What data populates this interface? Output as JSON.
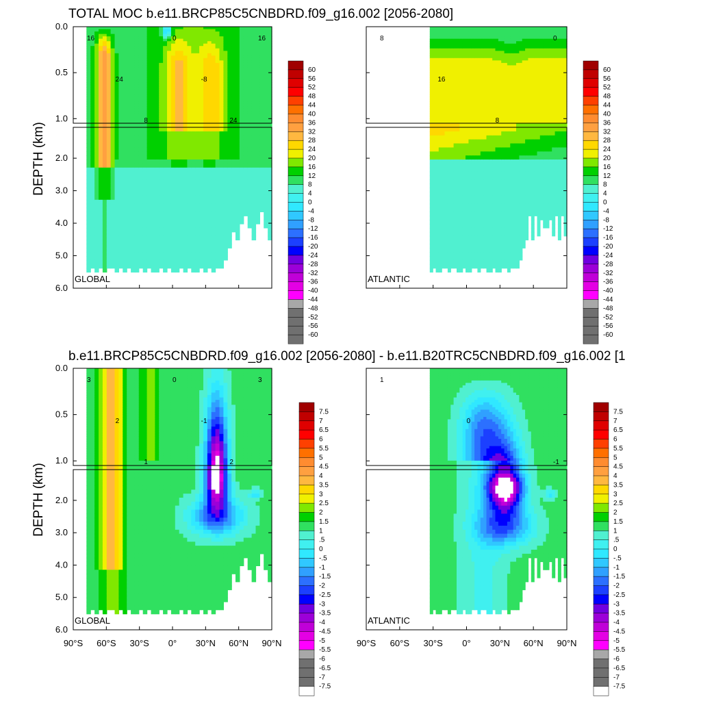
{
  "title_top": "TOTAL MOC b.e11.BRCP85C5CNBDRD.f09_g16.002 [2056-2080]",
  "title_bottom": "b.e11.BRCP85C5CNBDRD.f09_g16.002 [2056-2080] - b.e11.B20TRC5CNBDRD.f09_g16.002 [1",
  "ylabel": "DEPTH (km)",
  "colors": {
    "palette": [
      "#707070",
      "#a8a8a8",
      "#ff00ff",
      "#e400e4",
      "#c000d8",
      "#9c00d8",
      "#7000e0",
      "#0000ff",
      "#1c40ff",
      "#2c70ff",
      "#30a0ff",
      "#30c8ff",
      "#30e8ff",
      "#40f0f0",
      "#50f0d0",
      "#30e060",
      "#00d000",
      "#80e800",
      "#f0f000",
      "#ffd800",
      "#ffb840",
      "#ffa040",
      "#ff8c30",
      "#ff7000",
      "#ff4000",
      "#ff0000",
      "#e00000",
      "#c00000",
      "#a00000"
    ],
    "background": "#ffffff",
    "line": "#000000"
  },
  "chart_data": [
    {
      "type": "heatmap",
      "name": "GLOBAL",
      "panel_label": "GLOBAL",
      "plot": "total",
      "x": {
        "range": [
          -90,
          90
        ],
        "ticks": [
          "90°S",
          "60°S",
          "30°S",
          "0°",
          "30°N",
          "60°N",
          "90°N"
        ]
      },
      "y": {
        "range": [
          0,
          6
        ],
        "breaks_at": 1.0,
        "ticks": [
          "0.0",
          "0.5",
          "1.0",
          "2.0",
          "3.0",
          "4.0",
          "5.0",
          "6.0"
        ]
      },
      "contour_labels": [
        "16",
        "24",
        "8",
        "0",
        "-8",
        "24",
        "16"
      ]
    },
    {
      "type": "heatmap",
      "name": "ATLANTIC",
      "panel_label": "ATLANTIC",
      "plot": "total",
      "x": {
        "range": [
          -90,
          90
        ],
        "ticks": [
          "90°S",
          "60°S",
          "30°S",
          "0°",
          "30°N",
          "60°N",
          "90°N"
        ]
      },
      "y": {
        "range": [
          0,
          6
        ],
        "breaks_at": 1.0,
        "ticks": [
          "0.0",
          "0.5",
          "1.0",
          "2.0",
          "3.0",
          "4.0",
          "5.0",
          "6.0"
        ]
      },
      "contour_labels": [
        "8",
        "16",
        "8",
        "0"
      ]
    },
    {
      "type": "heatmap",
      "name": "GLOBAL",
      "panel_label": "GLOBAL",
      "plot": "diff",
      "x": {
        "range": [
          -90,
          90
        ],
        "ticks": [
          "90°S",
          "60°S",
          "30°S",
          "0°",
          "30°N",
          "60°N",
          "90°N"
        ]
      },
      "y": {
        "range": [
          0,
          6
        ],
        "breaks_at": 1.0,
        "ticks": [
          "0.0",
          "0.5",
          "1.0",
          "2.0",
          "3.0",
          "4.0",
          "5.0",
          "6.0"
        ]
      },
      "contour_labels": [
        "3",
        "2",
        "1",
        "0",
        "-1",
        "2",
        "3"
      ]
    },
    {
      "type": "heatmap",
      "name": "ATLANTIC",
      "panel_label": "ATLANTIC",
      "plot": "diff",
      "x": {
        "range": [
          -90,
          90
        ],
        "ticks": [
          "90°S",
          "60°S",
          "30°S",
          "0°",
          "30°N",
          "60°N",
          "90°N"
        ]
      },
      "y": {
        "range": [
          0,
          6
        ],
        "breaks_at": 1.0,
        "ticks": [
          "0.0",
          "0.5",
          "1.0",
          "2.0",
          "3.0",
          "4.0",
          "5.0",
          "6.0"
        ]
      },
      "contour_labels": [
        "1",
        "0",
        "-1"
      ]
    }
  ],
  "colorbar_top": {
    "ticks": [
      "60",
      "56",
      "52",
      "48",
      "44",
      "40",
      "36",
      "32",
      "28",
      "24",
      "20",
      "16",
      "12",
      "8",
      "4",
      "0",
      "-4",
      "-8",
      "-12",
      "-16",
      "-20",
      "-24",
      "-28",
      "-32",
      "-36",
      "-40",
      "-44",
      "-48",
      "-52",
      "-56",
      "-60"
    ]
  },
  "colorbar_bottom": {
    "ticks": [
      "7.5",
      "7",
      "6.5",
      "6",
      "5.5",
      "5",
      "4.5",
      "4",
      "3.5",
      "3",
      "2.5",
      "2",
      "1.5",
      "1",
      ".5",
      "0",
      "-.5",
      "-1",
      "-1.5",
      "-2",
      "-2.5",
      "-3",
      "-3.5",
      "-4",
      "-4.5",
      "-5",
      "-5.5",
      "-6",
      "-6.5",
      "-7",
      "-7.5"
    ]
  }
}
